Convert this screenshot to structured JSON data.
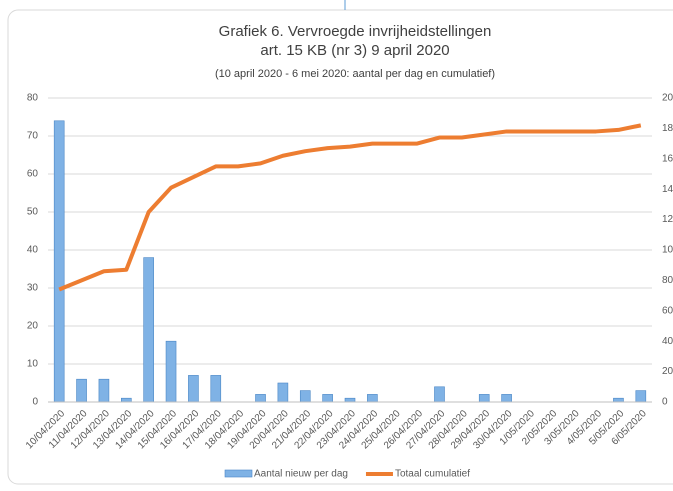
{
  "chart_data": {
    "type": "bar_line",
    "title": "Grafiek 6. Vervroegde invrijheidstellingen",
    "title2": "art. 15 KB (nr 3) 9 april 2020",
    "subtitle": "(10 april 2020 - 6 mei 2020: aantal per dag en cumulatief)",
    "categories": [
      "10/04/2020",
      "11/04/2020",
      "12/04/2020",
      "13/04/2020",
      "14/04/2020",
      "15/04/2020",
      "16/04/2020",
      "17/04/2020",
      "18/04/2020",
      "19/04/2020",
      "20/04/2020",
      "21/04/2020",
      "22/04/2020",
      "23/04/2020",
      "24/04/2020",
      "25/04/2020",
      "26/04/2020",
      "27/04/2020",
      "28/04/2020",
      "29/04/2020",
      "30/04/2020",
      "1/05/2020",
      "2/05/2020",
      "3/05/2020",
      "4/05/2020",
      "5/05/2020",
      "6/05/2020"
    ],
    "series": [
      {
        "name": "Aantal nieuw per dag",
        "color": "#7fb2e5",
        "type": "bar",
        "values": [
          74,
          6,
          6,
          1,
          38,
          16,
          7,
          7,
          0,
          2,
          5,
          3,
          2,
          1,
          2,
          0,
          0,
          4,
          0,
          2,
          2,
          0,
          0,
          0,
          0,
          1,
          3
        ]
      },
      {
        "name": "Totaal cumulatief",
        "color": "#ed7d31",
        "type": "line",
        "axis": "y2",
        "values": [
          74,
          80,
          86,
          87,
          125,
          141,
          148,
          155,
          155,
          157,
          162,
          165,
          167,
          168,
          170,
          170,
          170,
          174,
          174,
          176,
          178,
          178,
          178,
          178,
          178,
          179,
          182
        ]
      }
    ],
    "ylim": [
      0,
      80
    ],
    "yticks": [
      0,
      10,
      20,
      30,
      40,
      50,
      60,
      70,
      80
    ],
    "y2lim": [
      0,
      200
    ],
    "y2ticks": [
      0,
      20,
      40,
      60,
      80,
      100,
      120,
      140,
      160,
      180,
      200
    ],
    "grid": true
  }
}
